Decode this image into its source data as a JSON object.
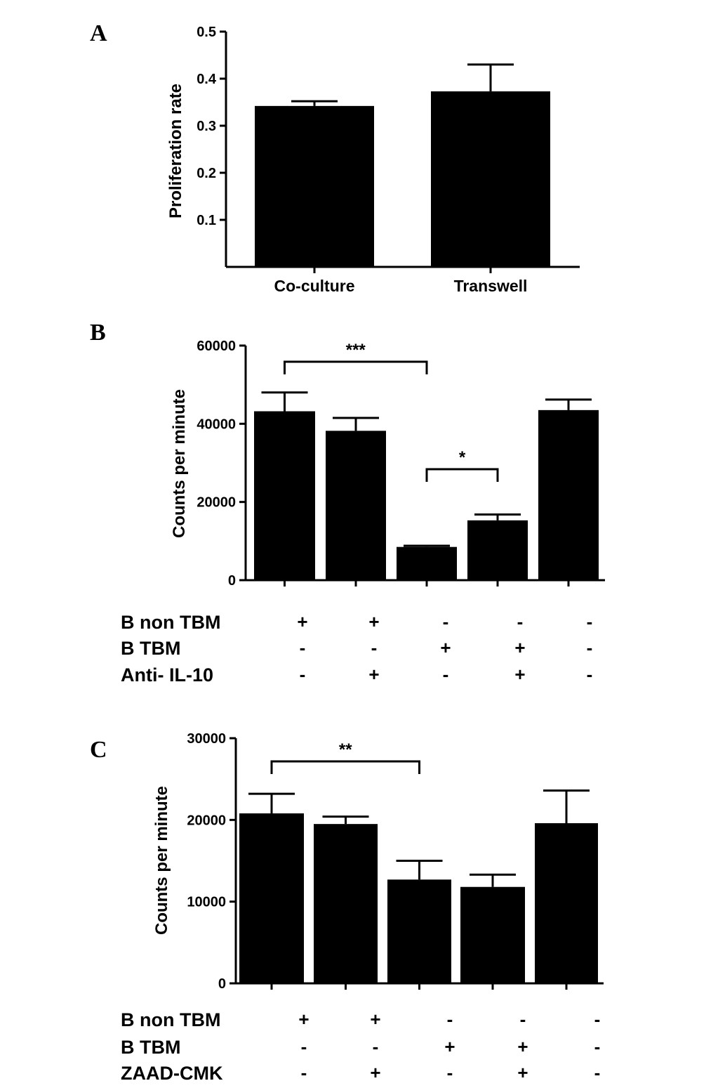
{
  "chart_data": [
    {
      "panel": "A",
      "type": "bar",
      "categories": [
        "Co-culture",
        "Transwell"
      ],
      "values": [
        0.342,
        0.373
      ],
      "errors": [
        0.01,
        0.057
      ],
      "ylabel": "Proliferation rate",
      "ylim": [
        0,
        0.5
      ],
      "yticks": [
        "0.1",
        "0.2",
        "0.3",
        "0.4",
        "0.5"
      ],
      "bar_color": "#000000"
    },
    {
      "panel": "B",
      "type": "bar",
      "categories": [
        "",
        "",
        "",
        "",
        ""
      ],
      "values": [
        43200,
        38200,
        8500,
        15300,
        43500
      ],
      "errors": [
        4800,
        3300,
        300,
        1500,
        2700
      ],
      "ylabel": "Counts per minute",
      "ylim": [
        0,
        60000
      ],
      "yticks": [
        "0",
        "20000",
        "40000",
        "60000"
      ],
      "bar_color": "#000000",
      "significance": [
        {
          "from": 0,
          "to": 2,
          "label": "***"
        },
        {
          "from": 2,
          "to": 3,
          "label": "*"
        }
      ],
      "conditions": [
        {
          "label": "B non TBM",
          "signs": [
            "+",
            "+",
            "-",
            "-",
            "-"
          ]
        },
        {
          "label": "B TBM",
          "signs": [
            "-",
            "-",
            "+",
            "+",
            "-"
          ]
        },
        {
          "label": "Anti- IL-10",
          "signs": [
            "-",
            "+",
            "-",
            "+",
            "-"
          ]
        }
      ]
    },
    {
      "panel": "C",
      "type": "bar",
      "categories": [
        "",
        "",
        "",
        "",
        ""
      ],
      "values": [
        20800,
        19500,
        12700,
        11800,
        19600
      ],
      "errors": [
        2400,
        900,
        2300,
        1500,
        4000
      ],
      "ylabel": "Counts per minute",
      "ylim": [
        0,
        30000
      ],
      "yticks": [
        "0",
        "10000",
        "20000",
        "30000"
      ],
      "bar_color": "#000000",
      "significance": [
        {
          "from": 0,
          "to": 2,
          "label": "**"
        }
      ],
      "conditions": [
        {
          "label": "B non TBM",
          "signs": [
            "+",
            "+",
            "-",
            "-",
            "-"
          ]
        },
        {
          "label": "B TBM",
          "signs": [
            "-",
            "-",
            "+",
            "+",
            "-"
          ]
        },
        {
          "label": "ZAAD-CMK",
          "signs": [
            "-",
            "+",
            "-",
            "+",
            "-"
          ]
        }
      ]
    }
  ]
}
